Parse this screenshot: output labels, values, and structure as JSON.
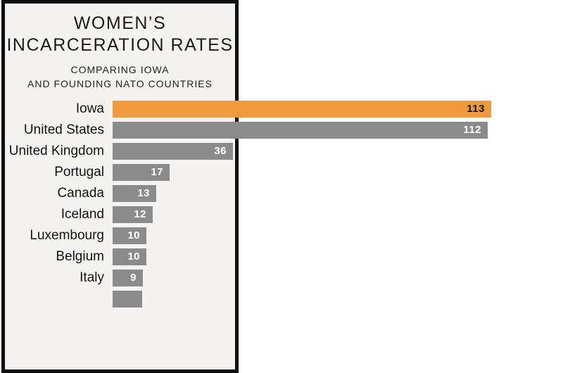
{
  "panel": {
    "title_line1": "WOMEN’S",
    "title_line2": "INCARCERATION RATES",
    "subtitle_line1": "COMPARING IOWA",
    "subtitle_line2": "AND FOUNDING NATO COUNTRIES"
  },
  "chart_data": {
    "type": "bar",
    "orientation": "horizontal",
    "title": "WOMEN’S INCARCERATION RATES",
    "subtitle": "COMPARING IOWA AND FOUNDING NATO COUNTRIES",
    "categories": [
      "Iowa",
      "United States",
      "United Kingdom",
      "Portugal",
      "Canada",
      "Iceland",
      "Luxembourg",
      "Belgium",
      "Italy"
    ],
    "values": [
      113,
      112,
      36,
      17,
      13,
      12,
      10,
      10,
      9
    ],
    "value_labels": [
      "113",
      "112",
      "36",
      "17",
      "13",
      "12",
      "10",
      "10",
      "9"
    ],
    "highlight_category": "Iowa",
    "xlim": [
      0,
      113
    ],
    "grid": false,
    "legend": false,
    "partial_bottom_bar_visible": true,
    "colors": {
      "highlight_bar": "#f09a3c",
      "default_bar": "#8b8b8b",
      "highlight_value_text": "#121212",
      "default_value_text": "#ffffff",
      "panel_background": "#f4f3f2",
      "panel_border": "#0d0d0d",
      "page_background": "#ffffff",
      "label_text": "#121212"
    }
  }
}
